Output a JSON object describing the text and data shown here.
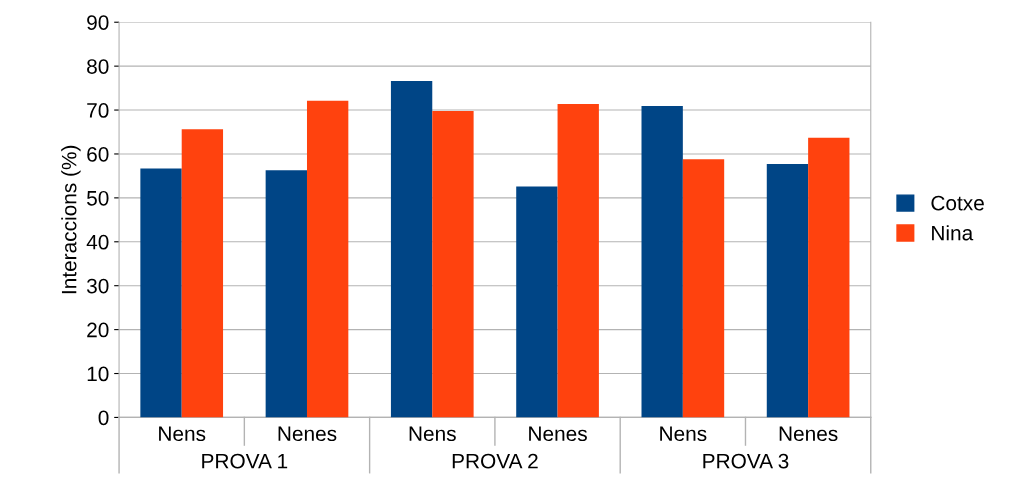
{
  "chart_data": {
    "type": "bar",
    "ylabel": "Interaccions (%)",
    "categories": [
      "Nens",
      "Nenes",
      "Nens",
      "Nenes",
      "Nens",
      "Nenes"
    ],
    "annotations": [
      "PROVA 1",
      "PROVA 2",
      "PROVA 3"
    ],
    "series": [
      {
        "name": "Cotxe",
        "color": "#004586",
        "values": [
          56.7,
          56.3,
          76.6,
          52.6,
          70.9,
          57.7
        ]
      },
      {
        "name": "Nina",
        "color": "#ff420e",
        "values": [
          65.6,
          72.1,
          69.8,
          71.4,
          58.8,
          63.7
        ]
      }
    ],
    "ylim": [
      0,
      90
    ],
    "yticks": [
      0,
      10,
      20,
      30,
      40,
      50,
      60,
      70,
      80,
      90
    ],
    "grid": "y",
    "legend": "right"
  }
}
